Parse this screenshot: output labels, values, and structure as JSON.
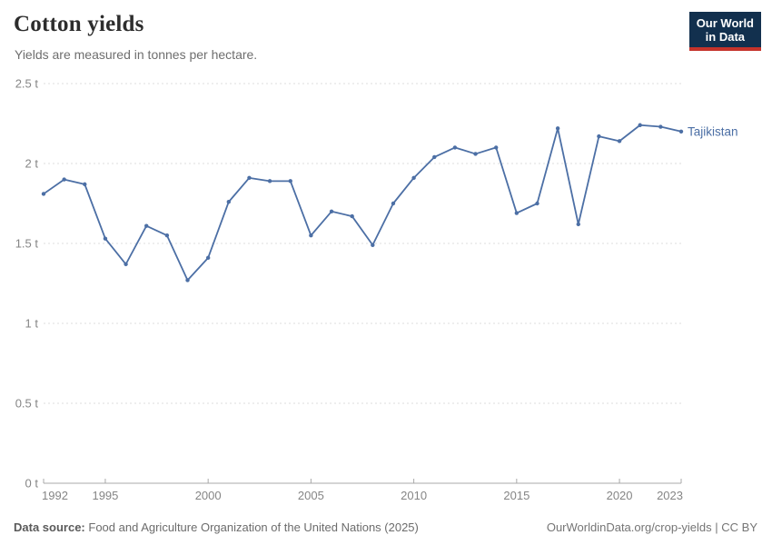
{
  "header": {
    "title": "Cotton yields",
    "subtitle": "Yields are measured in tonnes per hectare.",
    "logo": {
      "line1": "Our World",
      "line2": "in Data",
      "bg_color": "#12304e",
      "accent_color": "#c5332b"
    }
  },
  "chart_data": {
    "type": "line",
    "title": "Cotton yields",
    "subtitle": "Yields are measured in tonnes per hectare.",
    "unit": "t",
    "x": [
      1992,
      1993,
      1994,
      1995,
      1996,
      1997,
      1998,
      1999,
      2000,
      2001,
      2002,
      2003,
      2004,
      2005,
      2006,
      2007,
      2008,
      2009,
      2010,
      2011,
      2012,
      2013,
      2014,
      2015,
      2016,
      2017,
      2018,
      2019,
      2020,
      2021,
      2022,
      2023
    ],
    "series": [
      {
        "name": "Tajikistan",
        "color": "#4C6FA5",
        "values": [
          1.81,
          1.9,
          1.87,
          1.53,
          1.37,
          1.61,
          1.55,
          1.27,
          1.41,
          1.76,
          1.91,
          1.89,
          1.89,
          1.55,
          1.7,
          1.67,
          1.49,
          1.75,
          1.91,
          2.04,
          2.1,
          2.06,
          2.1,
          1.69,
          1.75,
          2.22,
          1.62,
          2.17,
          2.14,
          2.24,
          2.23,
          2.2
        ]
      }
    ],
    "xlim": [
      1992,
      2023
    ],
    "ylim": [
      0,
      2.5
    ],
    "x_ticks": [
      1992,
      1995,
      2000,
      2005,
      2010,
      2015,
      2020,
      2023
    ],
    "y_ticks": [
      {
        "value": 0,
        "label": "0 t"
      },
      {
        "value": 0.5,
        "label": "0.5 t"
      },
      {
        "value": 1,
        "label": "1 t"
      },
      {
        "value": 1.5,
        "label": "1.5 t"
      },
      {
        "value": 2,
        "label": "2 t"
      },
      {
        "value": 2.5,
        "label": "2.5 t"
      }
    ],
    "grid": true,
    "legend_position": "end-of-line",
    "end_label": "Tajikistan",
    "colors": {
      "grid": "#dcdcdc",
      "axis": "#a8a8a8",
      "tick_label": "#858585"
    }
  },
  "footer": {
    "source_label": "Data source:",
    "source_text": "Food and Agriculture Organization of the United Nations (2025)",
    "credit": "OurWorldinData.org/crop-yields | CC BY"
  }
}
